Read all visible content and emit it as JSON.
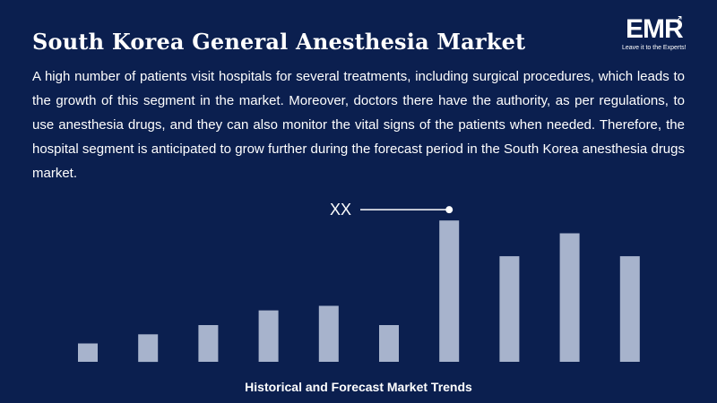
{
  "page": {
    "title": "South Korea General Anesthesia Market",
    "description": "A high number of patients visit hospitals for several treatments, including surgical procedures, which leads to the growth of this segment in the market. Moreover, doctors there have the authority, as per regulations, to use anesthesia drugs, and they can also monitor the vital signs of the patients when needed. Therefore, the hospital segment is anticipated to grow further during the forecast period in the South Korea anesthesia drugs market.",
    "logo": {
      "text": "EMR",
      "tagline": "Leave it to the Experts!"
    }
  },
  "colors": {
    "background": "#0b1f4f",
    "bar": "#a7b3cc",
    "text": "#ffffff"
  },
  "chart_data": {
    "type": "bar",
    "title": "",
    "caption": "Historical and Forecast Market Trends",
    "categories": [
      "",
      "",
      "",
      "",
      "",
      "",
      "",
      "",
      "",
      ""
    ],
    "values": [
      2.0,
      3.0,
      4.0,
      5.6,
      6.1,
      4.0,
      15.4,
      11.5,
      14.0,
      11.5
    ],
    "ylim": [
      0,
      16
    ],
    "grid": false,
    "annotation": {
      "text": "XX",
      "bar_index": 6
    }
  }
}
